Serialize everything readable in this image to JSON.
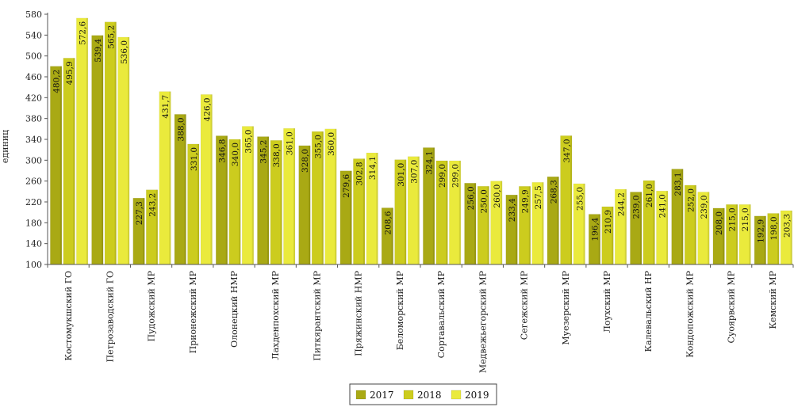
{
  "chart_data": {
    "type": "bar",
    "ylabel": "единиц",
    "ylim": [
      100,
      580
    ],
    "yticks": [
      100,
      140,
      180,
      220,
      260,
      300,
      340,
      380,
      420,
      460,
      500,
      540,
      580
    ],
    "legend_position": "bottom",
    "categories": [
      "Костомукшский ГО",
      "Петрозаводский ГО",
      "Пудожский МР",
      "Прионежский МР",
      "Олонецкий НМР",
      "Лахденпохский МР",
      "Питкярантский МР",
      "Пряжинский НМР",
      "Беломорский МР",
      "Сортавальский МР",
      "Медвежьегорский МР",
      "Сегежский МР",
      "Муезерский МР",
      "Лоухский МР",
      "Калевальский НР",
      "Кондопожский МР",
      "Суоярвский МР",
      "Кемский МР"
    ],
    "series": [
      {
        "name": "2017",
        "color": "#a9a914",
        "labels": [
          "480,2",
          "539,4",
          "227,3",
          "388,0",
          "346,8",
          "345,2",
          "328,0",
          "279,6",
          "208,6",
          "324,1",
          "256,0",
          "233,4",
          "268,3",
          "196,4",
          "239,0",
          "283,1",
          "208,0",
          "192,9"
        ],
        "values": [
          480.2,
          539.4,
          227.3,
          388.0,
          346.8,
          345.2,
          328.0,
          279.6,
          208.6,
          324.1,
          256.0,
          233.4,
          268.3,
          196.4,
          239.0,
          283.1,
          208.0,
          192.9
        ]
      },
      {
        "name": "2018",
        "color": "#cccc1e",
        "labels": [
          "495,9",
          "565,2",
          "243,2",
          "331,0",
          "340,0",
          "338,0",
          "355,0",
          "302,8",
          "301,0",
          "299,0",
          "250,0",
          "249,9",
          "347,0",
          "210,9",
          "261,0",
          "252,0",
          "215,0",
          "198,0"
        ],
        "values": [
          495.9,
          565.2,
          243.2,
          331.0,
          340.0,
          338.0,
          355.0,
          302.8,
          301.0,
          299.0,
          250.0,
          249.9,
          347.0,
          210.9,
          261.0,
          252.0,
          215.0,
          198.0
        ]
      },
      {
        "name": "2019",
        "color": "#eaea3c",
        "labels": [
          "572,6",
          "536,0",
          "431,7",
          "426,0",
          "365,0",
          "361,0",
          "360,0",
          "314,1",
          "307,0",
          "299,0",
          "260,0",
          "257,5",
          "255,0",
          "244,2",
          "241,0",
          "239,0",
          "215,0",
          "203,3"
        ],
        "values": [
          572.6,
          536.0,
          431.7,
          426.0,
          365.0,
          361.0,
          360.0,
          314.1,
          307.0,
          299.0,
          260.0,
          257.5,
          255.0,
          244.2,
          241.0,
          239.0,
          215.0,
          203.3
        ]
      }
    ]
  }
}
